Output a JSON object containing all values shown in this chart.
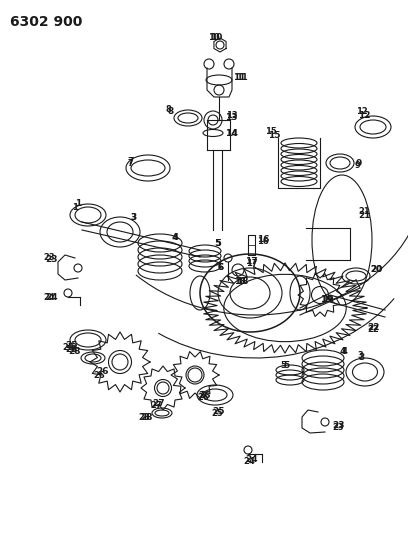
{
  "title": "6302 900",
  "bg_color": "#ffffff",
  "line_color": "#1a1a1a",
  "title_fontsize": 10,
  "fig_width": 4.08,
  "fig_height": 5.33,
  "dpi": 100
}
